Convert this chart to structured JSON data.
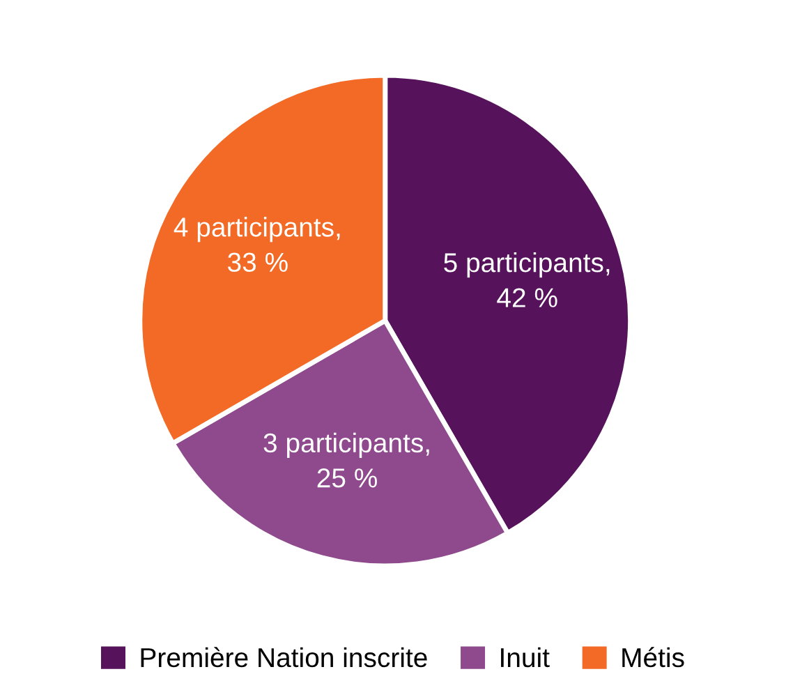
{
  "chart_data": {
    "type": "pie",
    "categories": [
      "Première Nation inscrite",
      "Inuit",
      "Métis"
    ],
    "values": [
      5,
      3,
      4
    ],
    "value_labels": [
      "5 participants,\n42 %",
      "3 participants,\n25 %",
      "4 participants,\n33 %"
    ],
    "colors": [
      "#56135b",
      "#8e4a8c",
      "#f26a25"
    ],
    "legend": "bottom"
  }
}
